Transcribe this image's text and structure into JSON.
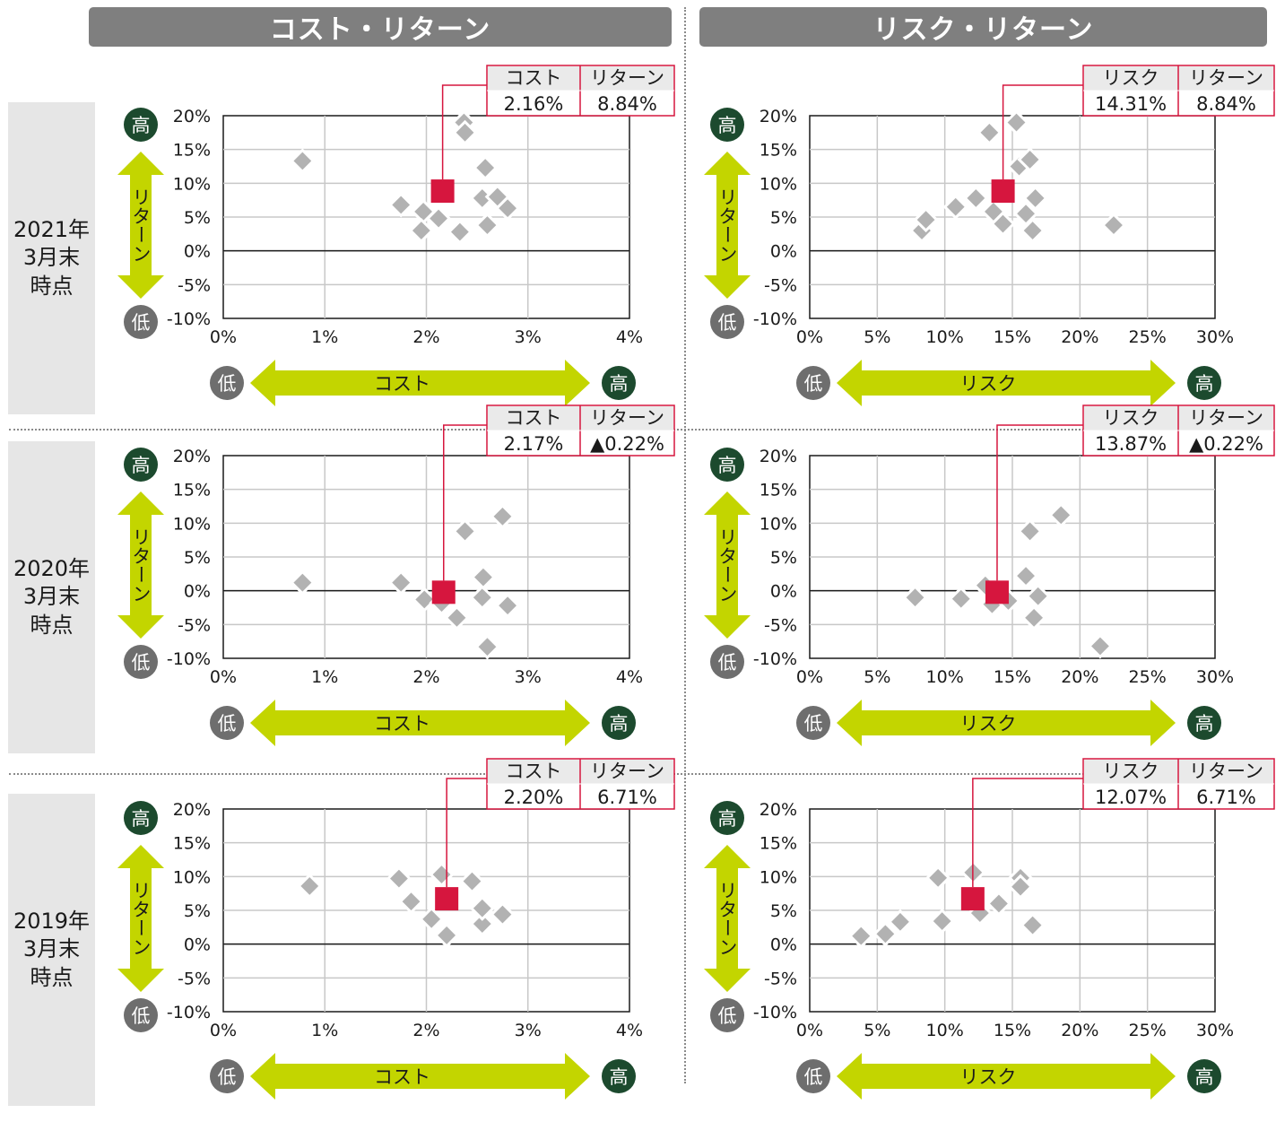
{
  "column_headers": [
    "コスト・リターン",
    "リスク・リターン"
  ],
  "row_labels": [
    [
      "2021年",
      "3月末",
      "時点"
    ],
    [
      "2020年",
      "3月末",
      "時点"
    ],
    [
      "2019年",
      "3月末",
      "時点"
    ]
  ],
  "axis_words": {
    "high": "高",
    "low": "低",
    "cost": "コスト",
    "risk": "リスク",
    "return": "リターン"
  },
  "colors": {
    "accent": "#d6163e",
    "marker": "#b2b2b2",
    "arrow": "#c3d500",
    "circle_green": "#1c4a2e",
    "circle_grey": "#6e6e6e",
    "header": "#7f7f7f"
  },
  "chart_data": [
    {
      "type": "scatter",
      "id": "cost-2021",
      "xlabel": "コスト",
      "ylabel": "リターン",
      "xlim": [
        0,
        4
      ],
      "ylim": [
        -10,
        20
      ],
      "xticks": [
        "0%",
        "1%",
        "2%",
        "3%",
        "4%"
      ],
      "yticks": [
        "20%",
        "15%",
        "10%",
        "5%",
        "0%",
        "-5%",
        "-10%"
      ],
      "points": [
        [
          0.78,
          13.3
        ],
        [
          1.75,
          6.8
        ],
        [
          1.97,
          5.8
        ],
        [
          1.95,
          3.0
        ],
        [
          2.12,
          4.8
        ],
        [
          2.33,
          2.8
        ],
        [
          2.37,
          19.0
        ],
        [
          2.38,
          17.5
        ],
        [
          2.55,
          7.8
        ],
        [
          2.58,
          12.3
        ],
        [
          2.6,
          3.8
        ],
        [
          2.7,
          8.0
        ],
        [
          2.8,
          6.3
        ]
      ],
      "highlight": [
        2.16,
        8.84
      ],
      "box": {
        "header_x": "コスト",
        "header_y": "リターン",
        "value_x": "2.16%",
        "value_y": "8.84%"
      }
    },
    {
      "type": "scatter",
      "id": "risk-2021",
      "xlabel": "リスク",
      "ylabel": "リターン",
      "xlim": [
        0,
        30
      ],
      "ylim": [
        -10,
        20
      ],
      "xticks": [
        "0%",
        "5%",
        "10%",
        "15%",
        "20%",
        "25%",
        "30%"
      ],
      "yticks": [
        "20%",
        "15%",
        "10%",
        "5%",
        "0%",
        "-5%",
        "-10%"
      ],
      "points": [
        [
          8.3,
          3.0
        ],
        [
          8.6,
          4.6
        ],
        [
          10.8,
          6.5
        ],
        [
          12.3,
          7.8
        ],
        [
          13.3,
          17.5
        ],
        [
          13.6,
          5.8
        ],
        [
          14.3,
          4.0
        ],
        [
          15.3,
          19.0
        ],
        [
          15.5,
          12.5
        ],
        [
          16.0,
          5.5
        ],
        [
          16.3,
          13.5
        ],
        [
          16.5,
          3.0
        ],
        [
          16.7,
          7.8
        ],
        [
          22.5,
          3.8
        ]
      ],
      "highlight": [
        14.31,
        8.84
      ],
      "box": {
        "header_x": "リスク",
        "header_y": "リターン",
        "value_x": "14.31%",
        "value_y": "8.84%"
      }
    },
    {
      "type": "scatter",
      "id": "cost-2020",
      "xlabel": "コスト",
      "ylabel": "リターン",
      "xlim": [
        0,
        4
      ],
      "ylim": [
        -10,
        20
      ],
      "xticks": [
        "0%",
        "1%",
        "2%",
        "3%",
        "4%"
      ],
      "yticks": [
        "20%",
        "15%",
        "10%",
        "5%",
        "0%",
        "-5%",
        "-10%"
      ],
      "points": [
        [
          0.78,
          1.2
        ],
        [
          1.75,
          1.2
        ],
        [
          1.98,
          -1.3
        ],
        [
          2.15,
          -1.8
        ],
        [
          2.3,
          -4.0
        ],
        [
          2.38,
          8.8
        ],
        [
          2.55,
          -1.0
        ],
        [
          2.56,
          2.0
        ],
        [
          2.6,
          -8.3
        ],
        [
          2.75,
          11.0
        ],
        [
          2.8,
          -2.2
        ]
      ],
      "highlight": [
        2.17,
        -0.22
      ],
      "box": {
        "header_x": "コスト",
        "header_y": "リターン",
        "value_x": "2.17%",
        "value_y": "▲0.22%"
      }
    },
    {
      "type": "scatter",
      "id": "risk-2020",
      "xlabel": "リスク",
      "ylabel": "リターン",
      "xlim": [
        0,
        30
      ],
      "ylim": [
        -10,
        20
      ],
      "xticks": [
        "0%",
        "5%",
        "10%",
        "15%",
        "20%",
        "25%",
        "30%"
      ],
      "yticks": [
        "20%",
        "15%",
        "10%",
        "5%",
        "0%",
        "-5%",
        "-10%"
      ],
      "points": [
        [
          7.8,
          -1.0
        ],
        [
          11.2,
          -1.2
        ],
        [
          13.0,
          0.8
        ],
        [
          13.5,
          -2.0
        ],
        [
          14.7,
          -1.5
        ],
        [
          16.0,
          2.2
        ],
        [
          16.3,
          8.8
        ],
        [
          16.6,
          -4.0
        ],
        [
          16.9,
          -0.8
        ],
        [
          18.6,
          11.2
        ],
        [
          21.5,
          -8.2
        ]
      ],
      "highlight": [
        13.87,
        -0.22
      ],
      "box": {
        "header_x": "リスク",
        "header_y": "リターン",
        "value_x": "13.87%",
        "value_y": "▲0.22%"
      }
    },
    {
      "type": "scatter",
      "id": "cost-2019",
      "xlabel": "コスト",
      "ylabel": "リターン",
      "xlim": [
        0,
        4
      ],
      "ylim": [
        -10,
        20
      ],
      "xticks": [
        "0%",
        "1%",
        "2%",
        "3%",
        "4%"
      ],
      "yticks": [
        "20%",
        "15%",
        "10%",
        "5%",
        "0%",
        "-5%",
        "-10%"
      ],
      "points": [
        [
          0.85,
          8.6
        ],
        [
          1.73,
          9.7
        ],
        [
          1.85,
          6.3
        ],
        [
          2.05,
          3.7
        ],
        [
          2.15,
          10.3
        ],
        [
          2.2,
          1.3
        ],
        [
          2.45,
          9.3
        ],
        [
          2.55,
          3.0
        ],
        [
          2.55,
          5.3
        ],
        [
          2.75,
          4.4
        ]
      ],
      "highlight": [
        2.2,
        6.71
      ],
      "box": {
        "header_x": "コスト",
        "header_y": "リターン",
        "value_x": "2.20%",
        "value_y": "6.71%"
      }
    },
    {
      "type": "scatter",
      "id": "risk-2019",
      "xlabel": "リスク",
      "ylabel": "リターン",
      "xlim": [
        0,
        30
      ],
      "ylim": [
        -10,
        20
      ],
      "xticks": [
        "0%",
        "5%",
        "10%",
        "15%",
        "20%",
        "25%",
        "30%"
      ],
      "yticks": [
        "20%",
        "15%",
        "10%",
        "5%",
        "0%",
        "-5%",
        "-10%"
      ],
      "points": [
        [
          3.8,
          1.2
        ],
        [
          5.6,
          1.5
        ],
        [
          6.7,
          3.3
        ],
        [
          9.5,
          9.8
        ],
        [
          9.8,
          3.4
        ],
        [
          12.1,
          10.6
        ],
        [
          12.6,
          4.6
        ],
        [
          14.0,
          6.0
        ],
        [
          15.6,
          9.8
        ],
        [
          15.6,
          8.5
        ],
        [
          16.5,
          2.8
        ]
      ],
      "highlight": [
        12.07,
        6.71
      ],
      "box": {
        "header_x": "リスク",
        "header_y": "リターン",
        "value_x": "12.07%",
        "value_y": "6.71%"
      }
    }
  ]
}
